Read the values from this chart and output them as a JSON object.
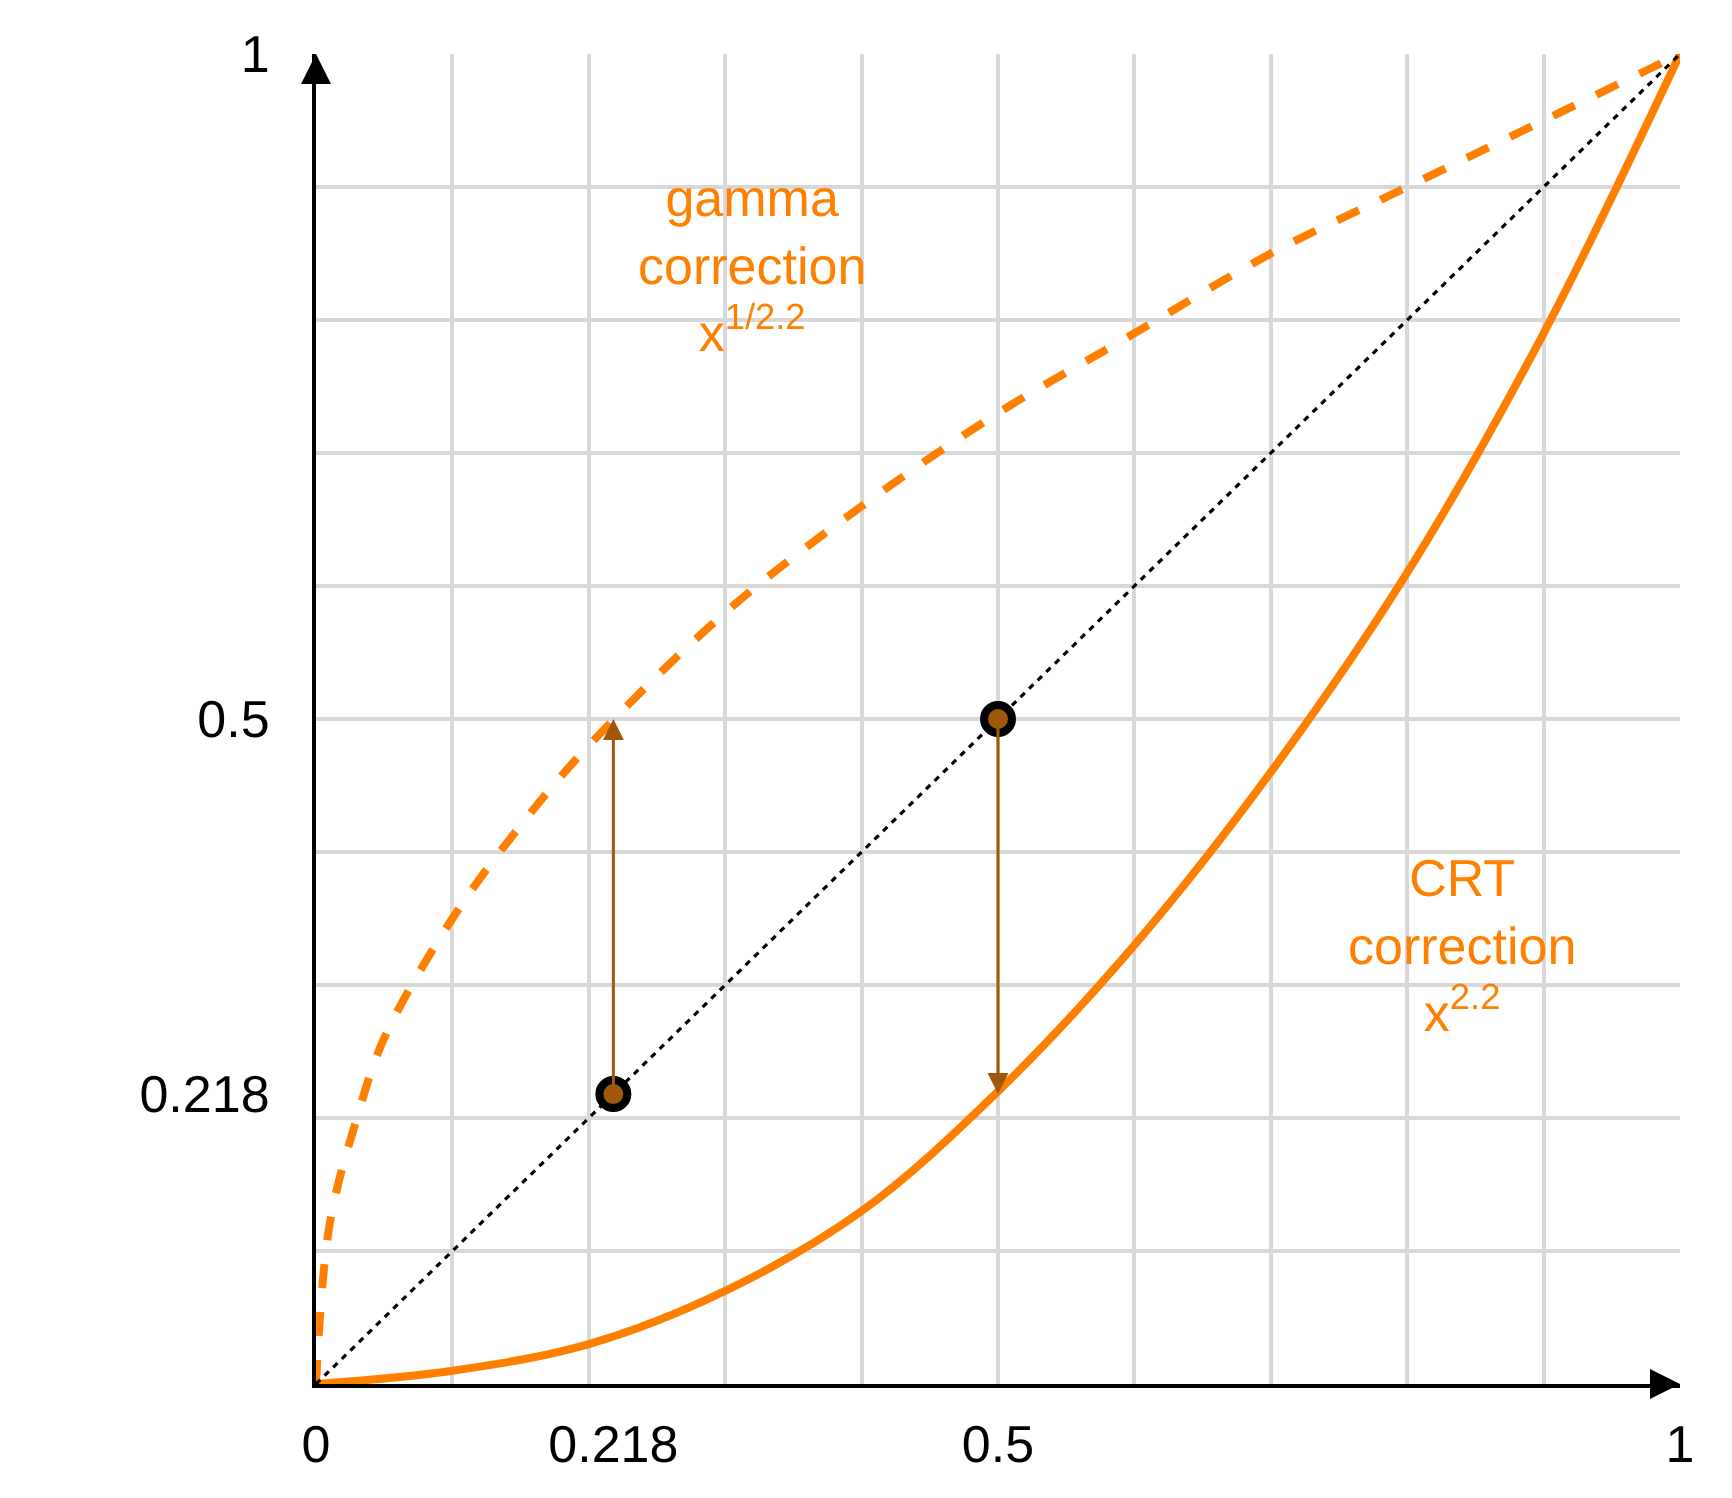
{
  "chart_data": {
    "type": "line",
    "xlim": [
      0,
      1
    ],
    "ylim": [
      0,
      1
    ],
    "xticks": [
      0,
      {
        "value": 0.1,
        "label": null
      },
      {
        "value": 0.2,
        "label": null
      },
      0.218,
      {
        "value": 0.3,
        "label": null
      },
      {
        "value": 0.4,
        "label": null
      },
      0.5,
      {
        "value": 0.6,
        "label": null
      },
      {
        "value": 0.7,
        "label": null
      },
      {
        "value": 0.8,
        "label": null
      },
      {
        "value": 0.9,
        "label": null
      },
      1
    ],
    "yticks": [
      {
        "value": 0,
        "label": null
      },
      {
        "value": 0.1,
        "label": null
      },
      {
        "value": 0.2,
        "label": null
      },
      0.218,
      {
        "value": 0.3,
        "label": null
      },
      {
        "value": 0.4,
        "label": null
      },
      0.5,
      {
        "value": 0.6,
        "label": null
      },
      {
        "value": 0.7,
        "label": null
      },
      {
        "value": 0.8,
        "label": null
      },
      {
        "value": 0.9,
        "label": null
      },
      1
    ],
    "grid": true,
    "series": [
      {
        "color": "#ff8000",
        "line_style": "dashed",
        "x": [
          0,
          0.01,
          0.03,
          0.05,
          0.1,
          0.15,
          0.2,
          0.3,
          0.4,
          0.5,
          0.6,
          0.7,
          0.8,
          0.9,
          1
        ],
        "values": [
          0,
          0.12,
          0.2,
          0.26,
          0.35,
          0.42,
          0.48,
          0.58,
          0.66,
          0.73,
          0.79,
          0.85,
          0.9,
          0.95,
          1
        ]
      },
      {
        "color": "#ff8000",
        "line_style": "solid",
        "x": [
          0,
          0.1,
          0.2,
          0.3,
          0.4,
          0.5,
          0.6,
          0.7,
          0.8,
          0.9,
          1
        ],
        "values": [
          0,
          0.01,
          0.03,
          0.07,
          0.13,
          0.22,
          0.33,
          0.46,
          0.61,
          0.79,
          1
        ]
      },
      {
        "color": "#000000",
        "line_style": "dotted",
        "x": [
          0,
          1
        ],
        "values": [
          0,
          1
        ]
      },
      {
        "type": "scatter",
        "color": "#a0580a",
        "marker": "circle",
        "x": [
          0.218,
          0.5
        ],
        "values": [
          0.218,
          0.5
        ]
      }
    ],
    "annotations": [
      "gamma\ncorrection\nx$^{1/2.2}$",
      "CRT\ncorrection\nx$^{2.2}$"
    ]
  }
}
